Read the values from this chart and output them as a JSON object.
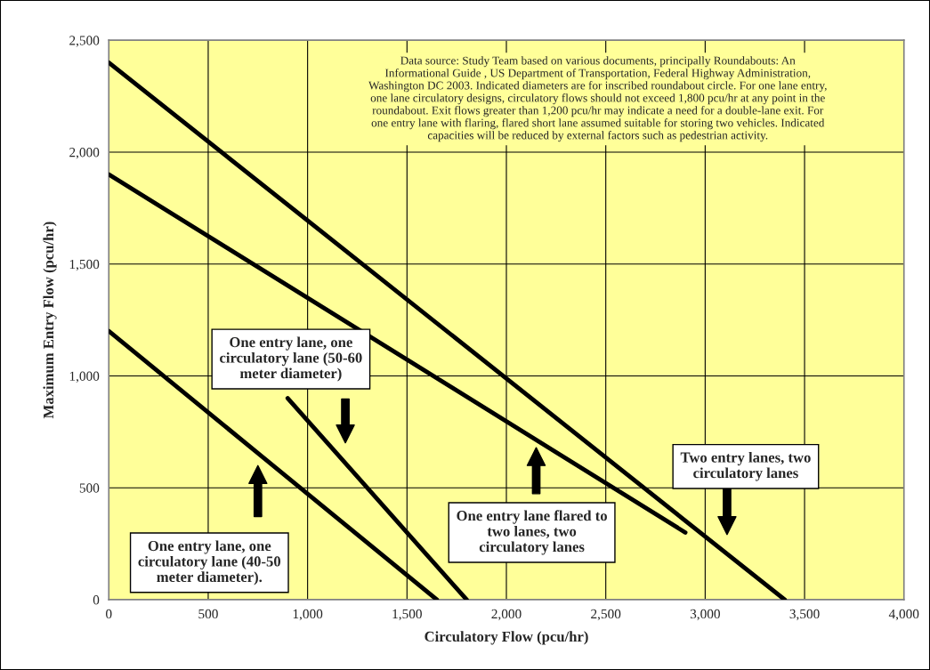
{
  "chart_data": {
    "type": "line",
    "xlabel": "Circulatory Flow (pcu/hr)",
    "ylabel": "Maximum Entry Flow (pcu/hr)",
    "xlim": [
      0,
      4000
    ],
    "xticks": [
      {
        "value": 0,
        "label": "0"
      },
      {
        "value": 500,
        "label": "500"
      },
      {
        "value": 1000,
        "label": "1,000"
      },
      {
        "value": 1500,
        "label": "1,500"
      },
      {
        "value": 2000,
        "label": "2,000"
      },
      {
        "value": 2500,
        "label": "2,500"
      },
      {
        "value": 3000,
        "label": "3,000"
      },
      {
        "value": 3500,
        "label": "3,500"
      },
      {
        "value": 4000,
        "label": "4,000"
      }
    ],
    "ylim": [
      0,
      2500
    ],
    "yticks": [
      {
        "value": 0,
        "label": "0"
      },
      {
        "value": 500,
        "label": "500"
      },
      {
        "value": 1000,
        "label": "1,000"
      },
      {
        "value": 1500,
        "label": "1,500"
      },
      {
        "value": 2000,
        "label": "2,000"
      },
      {
        "value": 2500,
        "label": "2,500"
      }
    ],
    "grid": true,
    "legend": false,
    "marker": "none",
    "line_style": "solid",
    "series": [
      {
        "color": "#000000",
        "x": [
          0,
          1650
        ],
        "values": [
          1200,
          0
        ]
      },
      {
        "color": "#000000",
        "x": [
          900,
          1800
        ],
        "values": [
          900,
          0
        ]
      },
      {
        "color": "#000000",
        "x": [
          0,
          2900
        ],
        "values": [
          1900,
          300
        ]
      },
      {
        "color": "#000000",
        "x": [
          0,
          3400
        ],
        "values": [
          2400,
          0
        ]
      }
    ],
    "annotations": [
      "One entry lane, one\ncirculatory lane (40-50\nmeter diameter).",
      "One entry lane, one\ncirculatory lane (50-60\nmeter diameter)",
      "One entry lane flared to\ntwo lanes, two\ncirculatory lanes",
      "Two entry lanes, two\ncirculatory lanes",
      "Data source: Study Team based on various documents, principally Roundabouts: An\nInformational Guide , US Department of Transportation, Federal Highway Administration,\nWashington DC 2003. Indicated diameters are for inscribed roundabout circle. For one lane entry,\none lane circulatory designs, circulatory flows should not exceed 1,800 pcu/hr at any point in the\nroundabout. Exit flows greater than 1,200 pcu/hr may indicate a need for a double-lane exit. For\none entry lane with flaring, flared short lane assumed suitable for storing two vehicles. Indicated\ncapacities will be reduced by external factors such as pedestrian activity."
    ]
  }
}
